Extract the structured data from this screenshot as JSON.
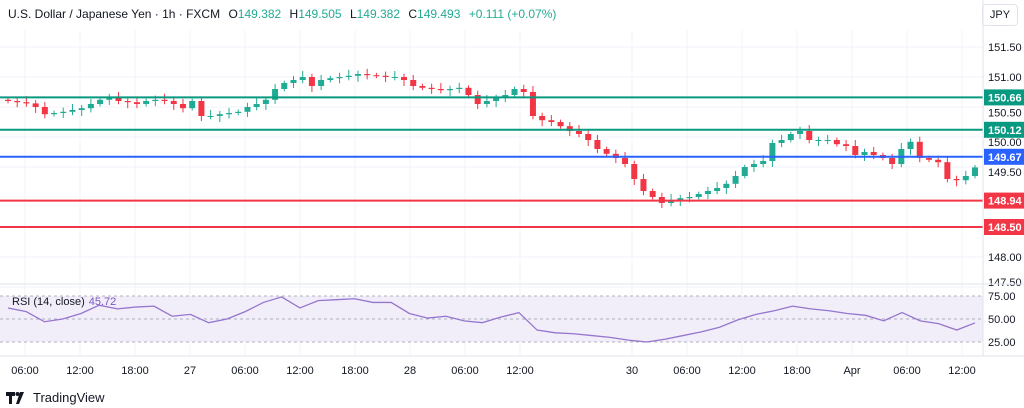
{
  "header": {
    "symbol": "U.S. Dollar / Japanese Yen · 1h · FXCM",
    "open_label": "O",
    "open": "149.382",
    "high_label": "H",
    "high": "149.505",
    "low_label": "L",
    "low": "149.382",
    "close_label": "C",
    "close": "149.493",
    "change": "+0.111 (+0.07%)"
  },
  "currency": "JPY",
  "brand": {
    "name": "TradingView",
    "icon": "tradingview-logo-icon"
  },
  "colors": {
    "up": "#22ab94",
    "down": "#f23645",
    "support": "#f23645",
    "resistance": "#089981",
    "pivot": "#2962ff",
    "rsi": "#9575cd"
  },
  "chart_data": {
    "type": "candlestick",
    "price_ylim": [
      147.5,
      151.8
    ],
    "price_ticks": [
      "151.50",
      "151.00",
      "150.50",
      "150.00",
      "149.50",
      "148.00",
      "147.50"
    ],
    "time_ticks": [
      "06:00",
      "12:00",
      "18:00",
      "27",
      "06:00",
      "12:00",
      "18:00",
      "28",
      "06:00",
      "12:00",
      "30",
      "06:00",
      "12:00",
      "18:00",
      "Apr",
      "06:00",
      "12:00"
    ],
    "closes": [
      150.6,
      150.58,
      150.56,
      150.5,
      150.38,
      150.4,
      150.42,
      150.45,
      150.48,
      150.55,
      150.62,
      150.65,
      150.6,
      150.58,
      150.55,
      150.6,
      150.62,
      150.6,
      150.55,
      150.48,
      150.6,
      150.35,
      150.35,
      150.38,
      150.4,
      150.42,
      150.5,
      150.55,
      150.62,
      150.8,
      150.9,
      150.95,
      151.0,
      150.85,
      150.95,
      150.98,
      151.0,
      151.02,
      151.05,
      151.03,
      151.02,
      151.0,
      151.0,
      150.95,
      150.85,
      150.82,
      150.8,
      150.78,
      150.8,
      150.82,
      150.7,
      150.55,
      150.6,
      150.65,
      150.7,
      150.8,
      150.75,
      150.35,
      150.28,
      150.25,
      150.18,
      150.1,
      150.05,
      149.95,
      149.8,
      149.72,
      149.65,
      149.55,
      149.3,
      149.1,
      149.0,
      148.9,
      148.95,
      148.98,
      149.0,
      149.05,
      149.1,
      149.15,
      149.22,
      149.35,
      149.5,
      149.55,
      149.6,
      149.9,
      149.95,
      150.05,
      150.1,
      149.95,
      149.95,
      149.95,
      149.88,
      149.85,
      149.7,
      149.75,
      149.7,
      149.65,
      149.55,
      149.8,
      149.92,
      149.65,
      149.62,
      149.58,
      149.3,
      149.28,
      149.35,
      149.493
    ],
    "levels": [
      {
        "value": "150.66",
        "kind": "resistance"
      },
      {
        "value": "150.12",
        "kind": "resistance"
      },
      {
        "value": "149.67",
        "kind": "pivot"
      },
      {
        "value": "148.94",
        "kind": "support"
      },
      {
        "value": "148.50",
        "kind": "support"
      }
    ],
    "rsi": {
      "label": "RSI (14, close)",
      "last": "45.72",
      "ticks": [
        "75.00",
        "50.00",
        "25.00"
      ],
      "ylim": [
        25,
        75
      ],
      "values": [
        62,
        58,
        47,
        50,
        56,
        65,
        61,
        63,
        64,
        53,
        55,
        46,
        50,
        58,
        68,
        74,
        62,
        70,
        71,
        72,
        68,
        68,
        56,
        51,
        53,
        48,
        46,
        52,
        57,
        38,
        35,
        34,
        32,
        30,
        27,
        25,
        28,
        32,
        36,
        41,
        49,
        55,
        59,
        64,
        61,
        59,
        56,
        54,
        48,
        57,
        48,
        45,
        38,
        45.72
      ]
    }
  }
}
